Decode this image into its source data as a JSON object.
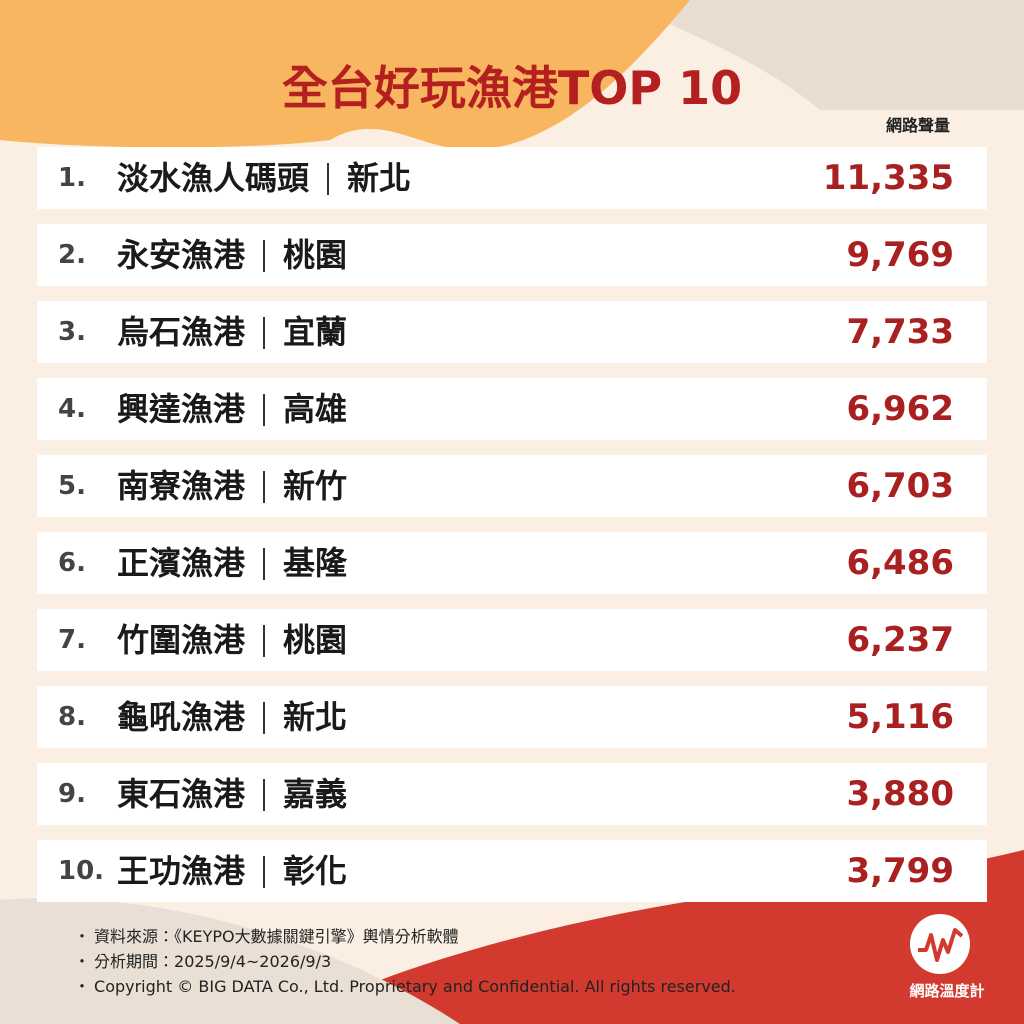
{
  "header": {
    "title": "全台好玩漁港TOP 10",
    "column_label": "網路聲量"
  },
  "table": {
    "rows": [
      [
        "1.",
        "淡水漁人碼頭",
        "新北",
        "11,335"
      ],
      [
        "2.",
        "永安漁港",
        "桃園",
        "9,769"
      ],
      [
        "3.",
        "烏石漁港",
        "宜蘭",
        "7,733"
      ],
      [
        "4.",
        "興達漁港",
        "高雄",
        "6,962"
      ],
      [
        "5.",
        "南寮漁港",
        "新竹",
        "6,703"
      ],
      [
        "6.",
        "正濱漁港",
        "基隆",
        "6,486"
      ],
      [
        "7.",
        "竹圍漁港",
        "桃園",
        "6,237"
      ],
      [
        "8.",
        "龜吼漁港",
        "新北",
        "5,116"
      ],
      [
        "9.",
        "東石漁港",
        "嘉義",
        "3,880"
      ],
      [
        "10.",
        "王功漁港",
        "彰化",
        "3,799"
      ]
    ]
  },
  "footer": {
    "notes": [
      "資料來源：《KEYPO大數據關鍵引擎》輿情分析軟體",
      "分析期間：2025/9/4~2026/9/3",
      "Copyright © BIG DATA Co., Ltd. Proprietary and Confidential. All rights reserved."
    ],
    "logo": "網路溫度計"
  }
}
